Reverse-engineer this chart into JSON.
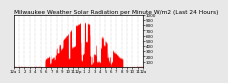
{
  "title": "Milwaukee Weather Solar Radiation per Minute W/m2 (Last 24 Hours)",
  "title_fontsize": 4.2,
  "background_color": "#e8e8e8",
  "plot_bg_color": "#ffffff",
  "bar_color": "#ff0000",
  "bar_edge_color": "#dd0000",
  "grid_color": "#aaaaaa",
  "axis_color": "#000000",
  "n_points": 1440,
  "peak_value": 850,
  "ylim": [
    0,
    1000
  ],
  "xlim": [
    0,
    1440
  ],
  "ytick_values": [
    100,
    200,
    300,
    400,
    500,
    600,
    700,
    800,
    900,
    1000
  ],
  "ytick_fontsize": 3.0,
  "xtick_fontsize": 2.8,
  "xlabel_labels": [
    "12a",
    "1",
    "2",
    "3",
    "4",
    "5",
    "6",
    "7",
    "8",
    "9",
    "10",
    "11",
    "12p",
    "1",
    "2",
    "3",
    "4",
    "5",
    "6",
    "7",
    "8",
    "9",
    "10",
    "11",
    "12a"
  ]
}
